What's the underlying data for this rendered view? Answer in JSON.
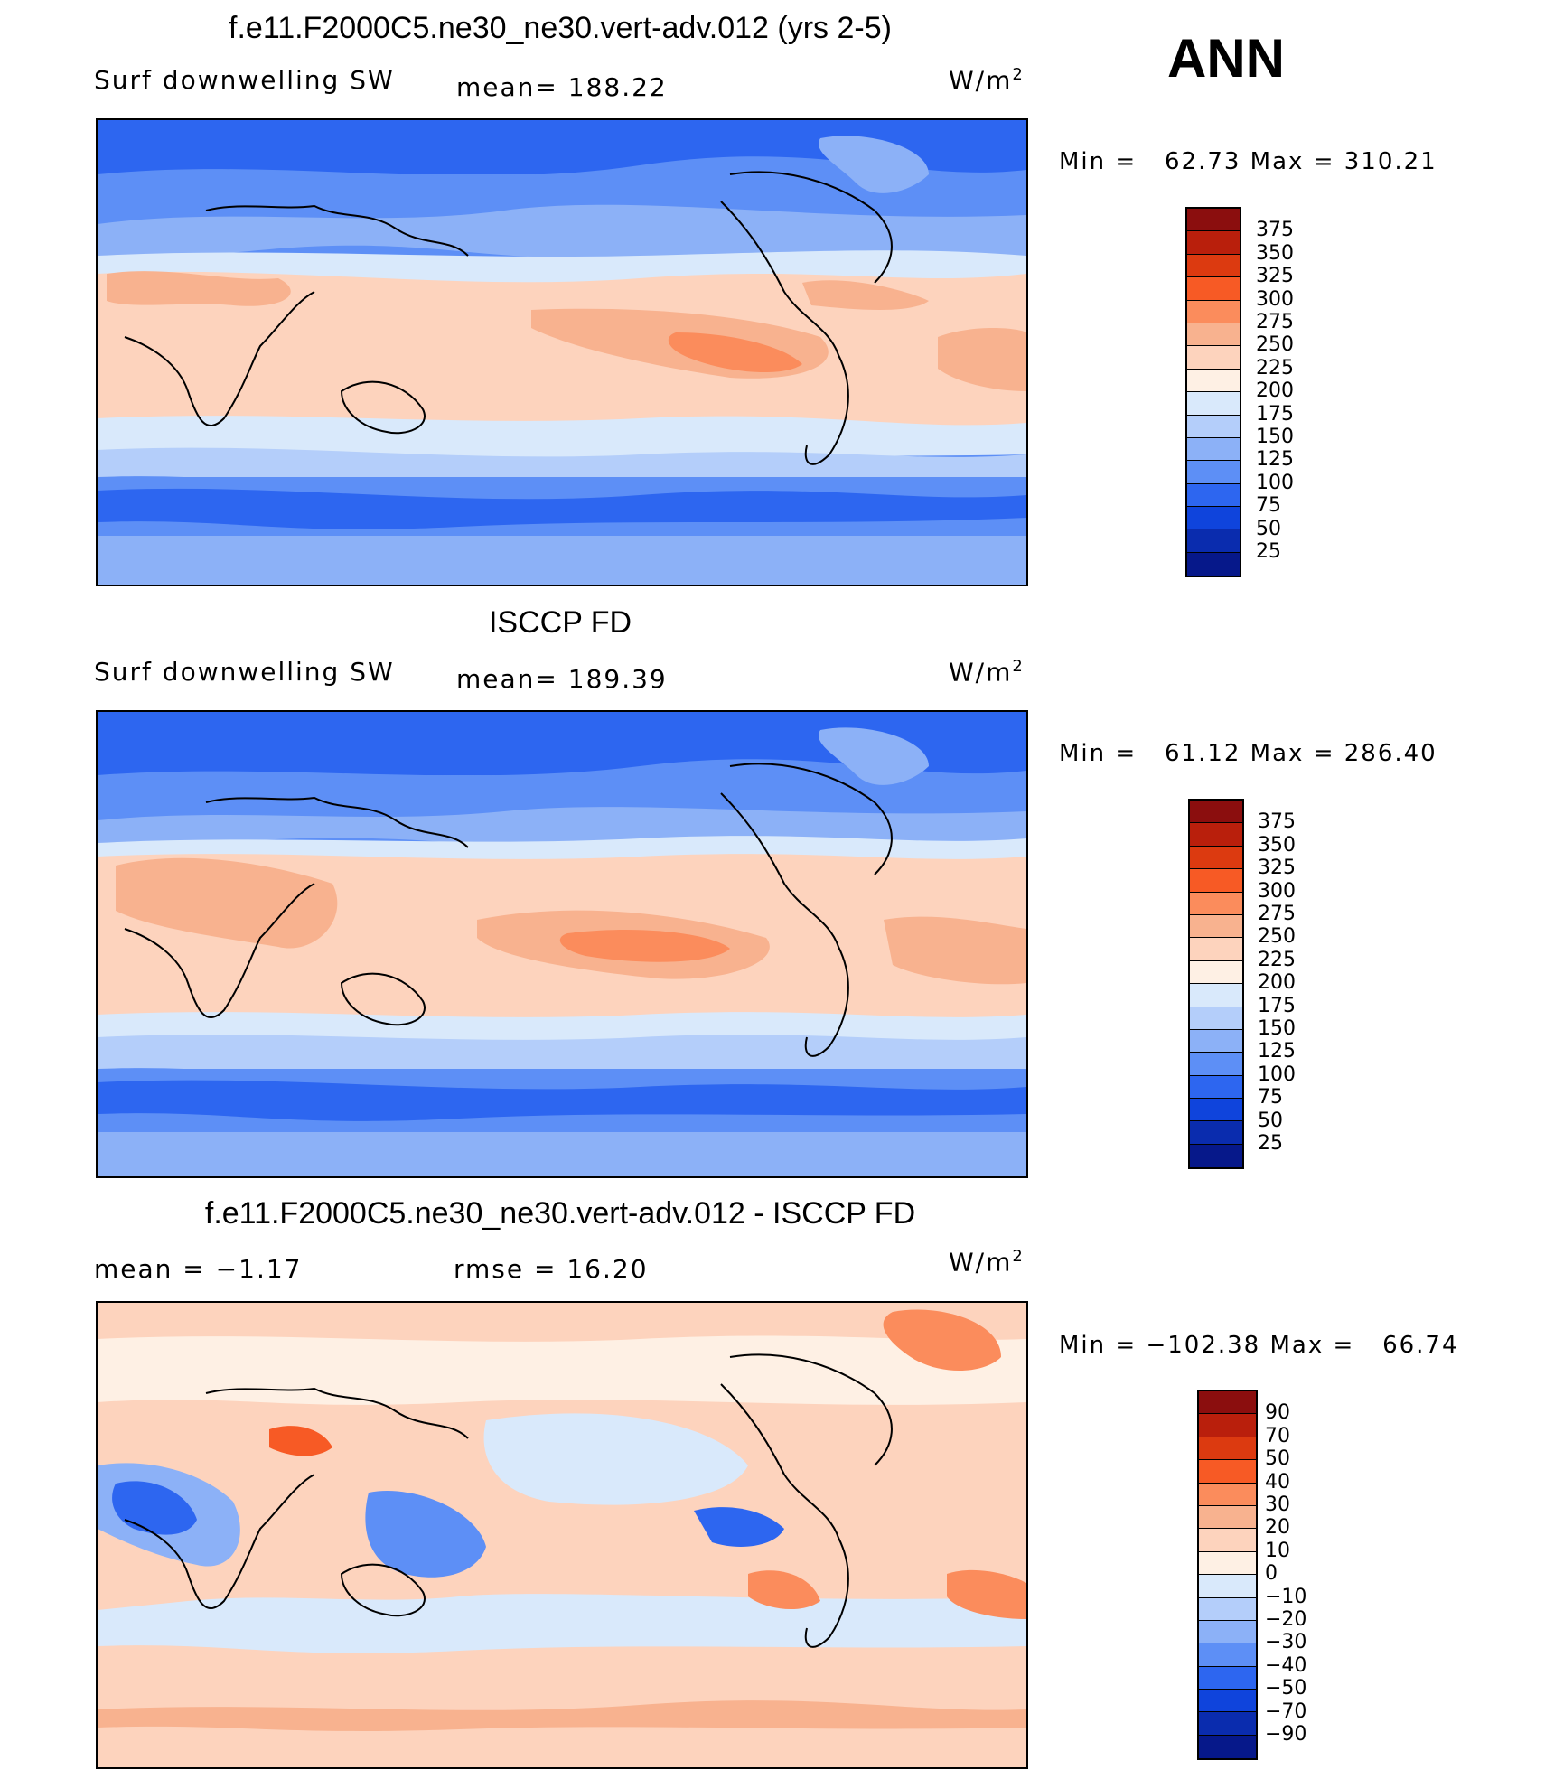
{
  "season": "ANN",
  "units": "W/m",
  "units_exp": "2",
  "panels": [
    {
      "title": "f.e11.F2000C5.ne30_ne30.vert-adv.012 (yrs 2-5)",
      "variable": "Surf downwelling SW",
      "stat1": "mean=  188.22",
      "stat2": "",
      "minmax": "Min =   62.73 Max = 310.21",
      "levels": [
        "375",
        "350",
        "325",
        "300",
        "275",
        "250",
        "225",
        "200",
        "175",
        "150",
        "125",
        "100",
        "75",
        "50",
        "25"
      ],
      "colors": [
        "#8b0e0e",
        "#b91f0c",
        "#dc3a10",
        "#f75a25",
        "#fb8c5c",
        "#f8b28f",
        "#fdd3bd",
        "#fef0e4",
        "#d9e9fb",
        "#b4cefa",
        "#8cb1f7",
        "#5d8ff6",
        "#2d66f0",
        "#0f44dc",
        "#0a2cae",
        "#06188a"
      ]
    },
    {
      "title": "ISCCP FD",
      "variable": "Surf downwelling SW",
      "stat1": "mean=  189.39",
      "stat2": "",
      "minmax": "Min =   61.12 Max = 286.40",
      "levels": [
        "375",
        "350",
        "325",
        "300",
        "275",
        "250",
        "225",
        "200",
        "175",
        "150",
        "125",
        "100",
        "75",
        "50",
        "25"
      ],
      "colors": [
        "#8b0e0e",
        "#b91f0c",
        "#dc3a10",
        "#f75a25",
        "#fb8c5c",
        "#f8b28f",
        "#fdd3bd",
        "#fef0e4",
        "#d9e9fb",
        "#b4cefa",
        "#8cb1f7",
        "#5d8ff6",
        "#2d66f0",
        "#0f44dc",
        "#0a2cae",
        "#06188a"
      ]
    },
    {
      "title": "f.e11.F2000C5.ne30_ne30.vert-adv.012 - ISCCP FD",
      "variable": "",
      "stat1": "mean =   −1.17",
      "stat2": "rmse =   16.20",
      "minmax": "Min = −102.38 Max =   66.74",
      "levels": [
        "90",
        "70",
        "50",
        "40",
        "30",
        "20",
        "10",
        "0",
        "−10",
        "−20",
        "−30",
        "−40",
        "−50",
        "−70",
        "−90"
      ],
      "colors": [
        "#8b0e0e",
        "#b91f0c",
        "#dc3a10",
        "#f75a25",
        "#fb8c5c",
        "#f8b28f",
        "#fdd3bd",
        "#fef0e4",
        "#d9e9fb",
        "#b4cefa",
        "#8cb1f7",
        "#5d8ff6",
        "#2d66f0",
        "#0f44dc",
        "#0a2cae",
        "#06188a"
      ]
    }
  ]
}
